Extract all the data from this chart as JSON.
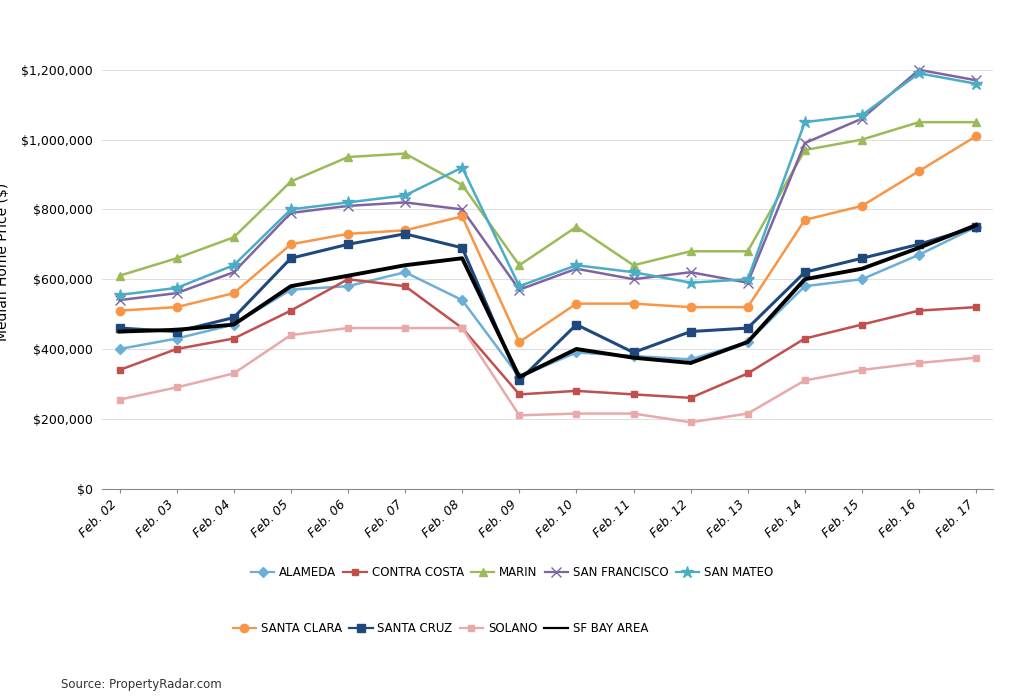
{
  "x_labels": [
    "Feb. 02",
    "Feb. 03",
    "Feb. 04",
    "Feb. 05",
    "Feb. 06",
    "Feb. 07",
    "Feb. 08",
    "Feb. 09",
    "Feb. 10",
    "Feb. 11",
    "Feb. 12",
    "Feb. 13",
    "Feb. 14",
    "Feb. 15",
    "Feb. 16",
    "Feb. 17"
  ],
  "series": {
    "ALAMEDA": {
      "color": "#6baed6",
      "marker": "D",
      "markersize": 5,
      "linewidth": 1.8,
      "values": [
        400000,
        430000,
        470000,
        570000,
        580000,
        620000,
        540000,
        320000,
        390000,
        380000,
        370000,
        420000,
        580000,
        600000,
        670000,
        750000
      ]
    },
    "CONTRA COSTA": {
      "color": "#c0504d",
      "marker": "s",
      "markersize": 5,
      "linewidth": 1.8,
      "values": [
        340000,
        400000,
        430000,
        510000,
        600000,
        580000,
        460000,
        270000,
        280000,
        270000,
        260000,
        330000,
        430000,
        470000,
        510000,
        520000
      ]
    },
    "MARIN": {
      "color": "#9bbb59",
      "marker": "^",
      "markersize": 6,
      "linewidth": 1.8,
      "values": [
        610000,
        660000,
        720000,
        880000,
        950000,
        960000,
        870000,
        640000,
        750000,
        640000,
        680000,
        680000,
        970000,
        1000000,
        1050000,
        1050000
      ]
    },
    "SAN FRANCISCO": {
      "color": "#8064a2",
      "marker": "x",
      "markersize": 7,
      "linewidth": 1.8,
      "values": [
        540000,
        560000,
        620000,
        790000,
        810000,
        820000,
        800000,
        570000,
        630000,
        600000,
        620000,
        590000,
        990000,
        1060000,
        1200000,
        1170000
      ]
    },
    "SAN MATEO": {
      "color": "#4bacc6",
      "marker": "*",
      "markersize": 9,
      "linewidth": 1.8,
      "values": [
        555000,
        575000,
        640000,
        800000,
        820000,
        840000,
        920000,
        580000,
        640000,
        620000,
        590000,
        600000,
        1050000,
        1070000,
        1190000,
        1160000
      ]
    },
    "SANTA CLARA": {
      "color": "#f79646",
      "marker": "o",
      "markersize": 6,
      "linewidth": 1.8,
      "values": [
        510000,
        520000,
        560000,
        700000,
        730000,
        740000,
        780000,
        420000,
        530000,
        530000,
        520000,
        520000,
        770000,
        810000,
        910000,
        1010000
      ]
    },
    "SANTA CRUZ": {
      "color": "#1f497d",
      "marker": "s",
      "markersize": 6,
      "linewidth": 2.2,
      "values": [
        460000,
        450000,
        490000,
        660000,
        700000,
        730000,
        690000,
        310000,
        470000,
        390000,
        450000,
        460000,
        620000,
        660000,
        700000,
        750000
      ]
    },
    "SOLANO": {
      "color": "#e8a9a9",
      "marker": "s",
      "markersize": 5,
      "linewidth": 1.8,
      "values": [
        255000,
        290000,
        330000,
        440000,
        460000,
        460000,
        460000,
        210000,
        215000,
        215000,
        190000,
        215000,
        310000,
        340000,
        360000,
        375000
      ]
    },
    "SF BAY AREA": {
      "color": "#000000",
      "marker": "None",
      "markersize": 0,
      "linewidth": 2.8,
      "values": [
        450000,
        455000,
        470000,
        580000,
        610000,
        640000,
        660000,
        320000,
        400000,
        375000,
        360000,
        420000,
        600000,
        630000,
        690000,
        755000
      ]
    }
  },
  "ylabel": "Median Home Price ($)",
  "ylim": [
    0,
    1300000
  ],
  "yticks": [
    0,
    200000,
    400000,
    600000,
    800000,
    1000000,
    1200000
  ],
  "ytick_labels": [
    "$0",
    "$200,000",
    "$400,000",
    "$600,000",
    "$800,000",
    "$1,000,000",
    "$1,200,000"
  ],
  "source_text": "Source: PropertyRadar.com",
  "legend_row1": [
    {
      "label": "ALAMEDA",
      "color": "#6baed6",
      "marker": "D",
      "markersize": 5
    },
    {
      "label": "CONTRA COSTA",
      "color": "#c0504d",
      "marker": "s",
      "markersize": 5
    },
    {
      "label": "MARIN",
      "color": "#9bbb59",
      "marker": "^",
      "markersize": 6
    },
    {
      "label": "SAN FRANCISCO",
      "color": "#8064a2",
      "marker": "x",
      "markersize": 7
    },
    {
      "label": "SAN MATEO",
      "color": "#4bacc6",
      "marker": "*",
      "markersize": 9
    }
  ],
  "legend_row2": [
    {
      "label": "SANTA CLARA",
      "color": "#f79646",
      "marker": "o",
      "markersize": 6
    },
    {
      "label": "SANTA CRUZ",
      "color": "#1f497d",
      "marker": "s",
      "markersize": 6
    },
    {
      "label": "SOLANO",
      "color": "#e8a9a9",
      "marker": "s",
      "markersize": 5
    },
    {
      "label": "SF BAY AREA",
      "color": "#000000",
      "marker": "None",
      "markersize": 0
    }
  ]
}
